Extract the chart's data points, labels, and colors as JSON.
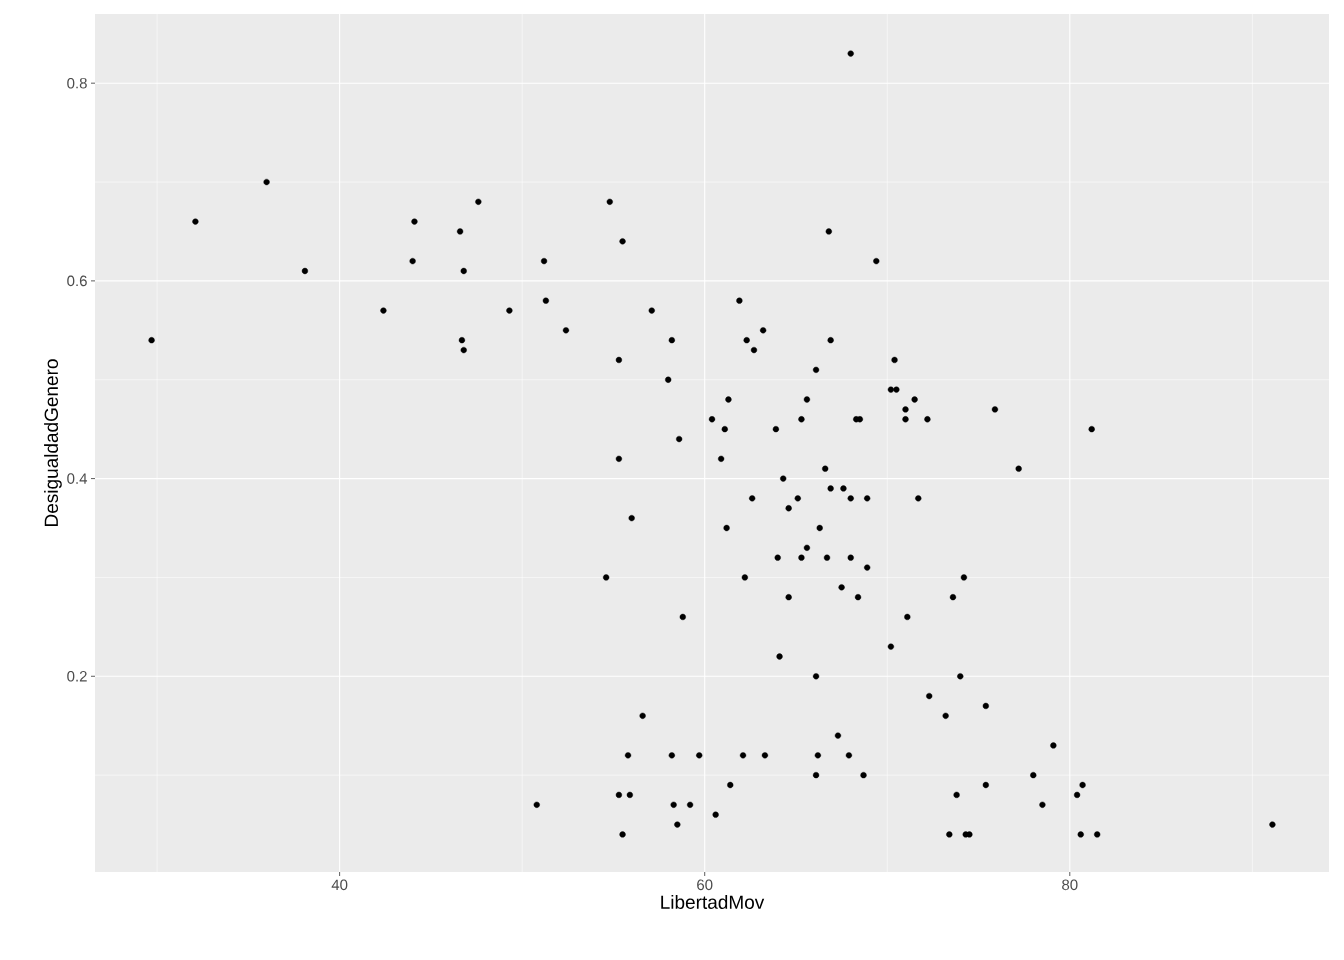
{
  "chart_data": {
    "type": "scatter",
    "xlabel": "LibertadMov",
    "ylabel": "DesigualdadGenero",
    "xlim": [
      26.6,
      94.2
    ],
    "ylim": [
      0.002,
      0.87
    ],
    "xticks": [
      40,
      60,
      80
    ],
    "yticks": [
      0.2,
      0.4,
      0.6,
      0.8
    ],
    "grid": true,
    "marker": "circle",
    "series": [
      {
        "color": "#000000",
        "x": [
          29.7,
          32.1,
          36.0,
          38.1,
          42.4,
          44.1,
          44.0,
          46.6,
          46.8,
          46.7,
          46.8,
          47.6,
          49.3,
          51.2,
          51.3,
          52.4,
          50.8,
          54.6,
          54.8,
          55.5,
          55.3,
          55.3,
          55.3,
          55.5,
          55.8,
          55.9,
          56.0,
          56.6,
          57.1,
          58.0,
          58.2,
          58.6,
          58.2,
          58.3,
          58.5,
          58.8,
          59.2,
          59.7,
          60.4,
          60.6,
          61.1,
          60.9,
          61.3,
          61.2,
          61.4,
          61.9,
          62.3,
          62.7,
          62.2,
          62.1,
          62.6,
          63.2,
          63.3,
          63.9,
          64.0,
          64.3,
          64.1,
          64.6,
          64.6,
          65.1,
          65.3,
          65.3,
          65.6,
          65.6,
          66.1,
          66.1,
          66.1,
          66.2,
          66.3,
          66.6,
          66.7,
          66.8,
          66.9,
          66.9,
          67.3,
          67.5,
          67.6,
          67.9,
          68.0,
          68.0,
          68.0,
          68.3,
          68.4,
          68.5,
          68.7,
          68.9,
          68.9,
          69.4,
          70.2,
          70.2,
          70.4,
          70.5,
          71.0,
          71.0,
          71.1,
          71.5,
          71.7,
          72.2,
          72.3,
          73.2,
          73.4,
          73.6,
          73.8,
          74.0,
          74.2,
          74.3,
          74.5,
          75.4,
          75.4,
          75.9,
          77.2,
          78.0,
          78.5,
          79.1,
          80.4,
          80.7,
          80.6,
          81.2,
          81.5,
          91.1
        ],
        "values": [
          0.54,
          0.66,
          0.7,
          0.61,
          0.57,
          0.66,
          0.62,
          0.65,
          0.61,
          0.54,
          0.53,
          0.68,
          0.57,
          0.62,
          0.58,
          0.55,
          0.07,
          0.3,
          0.68,
          0.64,
          0.52,
          0.42,
          0.08,
          0.04,
          0.12,
          0.08,
          0.36,
          0.16,
          0.57,
          0.5,
          0.54,
          0.44,
          0.12,
          0.07,
          0.05,
          0.26,
          0.07,
          0.12,
          0.46,
          0.06,
          0.45,
          0.42,
          0.48,
          0.35,
          0.09,
          0.58,
          0.54,
          0.53,
          0.3,
          0.12,
          0.38,
          0.55,
          0.12,
          0.45,
          0.32,
          0.4,
          0.22,
          0.37,
          0.28,
          0.38,
          0.32,
          0.46,
          0.48,
          0.33,
          0.51,
          0.2,
          0.1,
          0.12,
          0.35,
          0.41,
          0.32,
          0.65,
          0.54,
          0.39,
          0.14,
          0.29,
          0.39,
          0.12,
          0.83,
          0.38,
          0.32,
          0.46,
          0.28,
          0.46,
          0.1,
          0.38,
          0.31,
          0.62,
          0.49,
          0.23,
          0.52,
          0.49,
          0.47,
          0.46,
          0.26,
          0.48,
          0.38,
          0.46,
          0.18,
          0.16,
          0.04,
          0.28,
          0.08,
          0.2,
          0.3,
          0.04,
          0.04,
          0.17,
          0.09,
          0.47,
          0.41,
          0.1,
          0.07,
          0.13,
          0.08,
          0.09,
          0.04,
          0.45,
          0.04,
          0.05
        ]
      }
    ]
  }
}
